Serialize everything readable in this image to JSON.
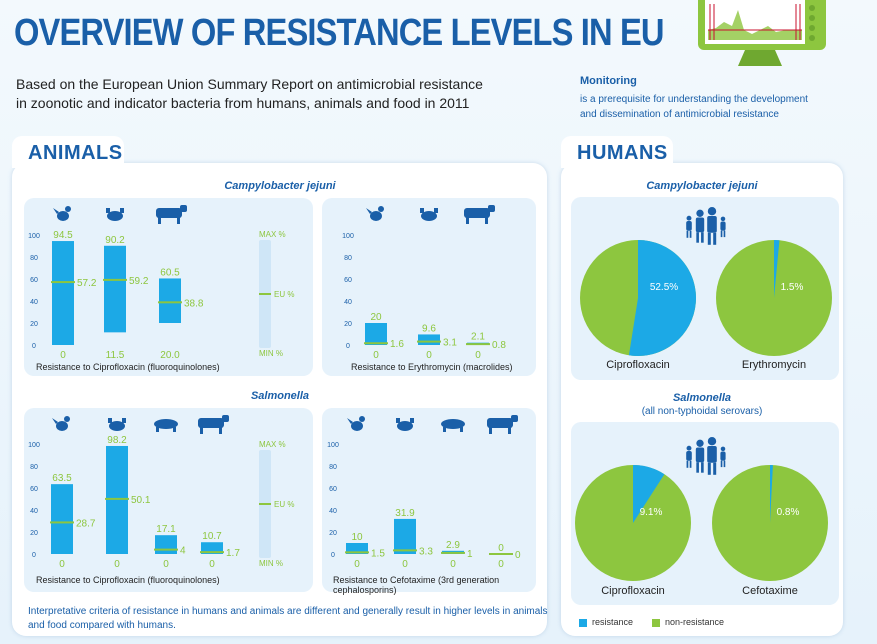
{
  "header": {
    "title": "OVERVIEW OF RESISTANCE LEVELS IN EU",
    "subtitle_line1": "Based on the European Union Summary Report on antimicrobial resistance",
    "subtitle_line2": "in zoonotic and indicator bacteria from humans, animals and food in 2011",
    "monitoring_title": "Monitoring",
    "monitoring_line1": "is a prerequisite for understanding the development",
    "monitoring_line2": "and dissemination of antimicrobial resistance"
  },
  "animals": {
    "tab_label": "ANIMALS",
    "campy_title": "Campylobacter jejuni",
    "salm_title": "Salmonella",
    "scale_labels": {
      "max": "MAX %",
      "eu": "EU %",
      "min": "MIN %"
    },
    "note": "Interpretative criteria of resistance in humans and animals are different and generally result in higher levels in animals and food compared with humans."
  },
  "humans": {
    "tab_label": "HUMANS",
    "campy_title": "Campylobacter jejuni",
    "salm_title": "Salmonella",
    "salm_sub": "(all non-typhoidal serovars)"
  },
  "legend": {
    "resistance": "resistance",
    "non_resistance": "non-resistance"
  },
  "colors": {
    "resistance": "#1ca9e6",
    "non_resistance": "#8dc63f",
    "title_blue": "#1a5fa8",
    "eu_line": "#8dc63f"
  },
  "chart_data": [
    {
      "type": "bar",
      "title": "Resistance to Ciprofloxacin (fluoroquinolones)",
      "group": "Campylobacter jejuni - animals",
      "categories": [
        "chicken-icon",
        "broiler-meat-icon",
        "cattle-icon"
      ],
      "series": [
        {
          "name": "MAX %",
          "values": [
            94.5,
            90.2,
            60.5
          ]
        },
        {
          "name": "EU %",
          "values": [
            57.2,
            59.2,
            38.8
          ]
        },
        {
          "name": "MIN %",
          "values": [
            0,
            11.5,
            20.0
          ]
        }
      ],
      "min_labels": [
        "0",
        "11.5",
        "20.0"
      ],
      "max_labels": [
        "94.5",
        "90.2",
        "60.5"
      ],
      "eu_labels": [
        "57.2",
        "59.2",
        "38.8"
      ],
      "yticks": [
        "100",
        "80",
        "60",
        "40",
        "20",
        "0"
      ],
      "ylim": [
        0,
        100
      ]
    },
    {
      "type": "bar",
      "title": "Resistance to Erythromycin (macrolides)",
      "group": "Campylobacter jejuni - animals",
      "categories": [
        "chicken-icon",
        "broiler-meat-icon",
        "cattle-icon"
      ],
      "series": [
        {
          "name": "MAX %",
          "values": [
            20,
            9.6,
            2.1
          ]
        },
        {
          "name": "EU %",
          "values": [
            1.6,
            3.1,
            0.8
          ]
        },
        {
          "name": "MIN %",
          "values": [
            0,
            0,
            0
          ]
        }
      ],
      "min_labels": [
        "0",
        "0",
        "0"
      ],
      "max_labels": [
        "20",
        "9.6",
        "2.1"
      ],
      "eu_labels": [
        "1.6",
        "3.1",
        "0.8"
      ],
      "yticks": [
        "100",
        "80",
        "60",
        "40",
        "20",
        "0"
      ],
      "ylim": [
        0,
        100
      ]
    },
    {
      "type": "bar",
      "title": "Resistance to Ciprofloxacin (fluoroquinolones)",
      "group": "Salmonella - animals",
      "categories": [
        "chicken-icon",
        "broiler-meat-icon",
        "pig-icon",
        "cattle-icon"
      ],
      "series": [
        {
          "name": "MAX %",
          "values": [
            63.5,
            98.2,
            17.1,
            10.7
          ]
        },
        {
          "name": "EU %",
          "values": [
            28.7,
            50.1,
            4,
            1.7
          ]
        },
        {
          "name": "MIN %",
          "values": [
            0,
            0,
            0,
            0
          ]
        }
      ],
      "min_labels": [
        "0",
        "0",
        "0",
        "0"
      ],
      "max_labels": [
        "63.5",
        "98.2",
        "17.1",
        "10.7"
      ],
      "eu_labels": [
        "28.7",
        "50.1",
        "4",
        "1.7"
      ],
      "yticks": [
        "100",
        "80",
        "60",
        "40",
        "20",
        "0"
      ],
      "ylim": [
        0,
        100
      ]
    },
    {
      "type": "bar",
      "title": "Resistance to Cefotaxime (3rd generation cephalosporins)",
      "title_line1": "Resistance to Cefotaxime (3rd generation",
      "title_line2": "cephalosporins)",
      "group": "Salmonella - animals",
      "categories": [
        "chicken-icon",
        "broiler-meat-icon",
        "pig-icon",
        "cattle-icon"
      ],
      "series": [
        {
          "name": "MAX %",
          "values": [
            10,
            31.9,
            2.9,
            0
          ]
        },
        {
          "name": "EU %",
          "values": [
            1.5,
            3.3,
            1,
            0
          ]
        },
        {
          "name": "MIN %",
          "values": [
            0,
            0,
            0,
            0
          ]
        }
      ],
      "min_labels": [
        "0",
        "0",
        "0",
        "0"
      ],
      "max_labels": [
        "10",
        "31.9",
        "2.9",
        "0"
      ],
      "eu_labels": [
        "1.5",
        "3.3",
        "1",
        "0"
      ],
      "yticks": [
        "100",
        "80",
        "60",
        "40",
        "20",
        "0"
      ],
      "ylim": [
        0,
        100
      ]
    },
    {
      "type": "pie",
      "group": "Campylobacter jejuni - humans",
      "title": "Ciprofloxacin",
      "values": [
        52.5,
        47.5
      ],
      "labels": [
        "resistance",
        "non-resistance"
      ],
      "value_label": "52.5%"
    },
    {
      "type": "pie",
      "group": "Campylobacter jejuni - humans",
      "title": "Erythromycin",
      "values": [
        1.5,
        98.5
      ],
      "labels": [
        "resistance",
        "non-resistance"
      ],
      "value_label": "1.5%"
    },
    {
      "type": "pie",
      "group": "Salmonella - humans",
      "title": "Ciprofloxacin",
      "values": [
        9.1,
        90.9
      ],
      "labels": [
        "resistance",
        "non-resistance"
      ],
      "value_label": "9.1%"
    },
    {
      "type": "pie",
      "group": "Salmonella - humans",
      "title": "Cefotaxime",
      "values": [
        0.8,
        99.2
      ],
      "labels": [
        "resistance",
        "non-resistance"
      ],
      "value_label": "0.8%"
    }
  ]
}
